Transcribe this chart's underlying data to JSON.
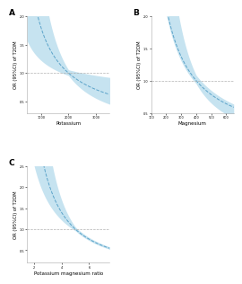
{
  "panel_A": {
    "label": "A",
    "xlabel": "Potassium",
    "ylabel": "OR (95%CI) of T2DM",
    "xrange": [
      500,
      3500
    ],
    "yrange": [
      0.3,
      2.0
    ],
    "ref_y": 1.0,
    "curve_color": "#5ba3c9",
    "fill_color": "#a8d4e8",
    "xticks": [
      1000,
      2000,
      3000
    ],
    "xtick_labels": [
      "1000",
      "2000",
      "3000"
    ],
    "yticks": [
      0.5,
      1.0,
      1.5,
      2.0
    ],
    "ytick_labels": [
      "0.5",
      "1.0",
      "1.5",
      "2.0"
    ]
  },
  "panel_B": {
    "label": "B",
    "xlabel": "Magnesium",
    "ylabel": "OR (95%CI) of T2DM",
    "xrange": [
      100,
      650
    ],
    "yrange": [
      0.5,
      2.0
    ],
    "ref_y": 1.0,
    "curve_color": "#5ba3c9",
    "fill_color": "#a8d4e8",
    "xticks": [
      100,
      200,
      300,
      400,
      500,
      600
    ],
    "xtick_labels": [
      "100",
      "200",
      "300",
      "400",
      "500",
      "600"
    ],
    "yticks": [
      0.5,
      1.0,
      1.5,
      2.0
    ],
    "ytick_labels": [
      "0.5",
      "1.0",
      "1.5",
      "2.0"
    ]
  },
  "panel_C": {
    "label": "C",
    "xlabel": "Potassium magnesium ratio",
    "ylabel": "OR (95%CI) of T2DM",
    "xrange": [
      1.5,
      7.5
    ],
    "yrange": [
      0.2,
      2.5
    ],
    "ref_y": 1.0,
    "curve_color": "#5ba3c9",
    "fill_color": "#a8d4e8",
    "xticks": [
      2,
      4,
      6
    ],
    "xtick_labels": [
      "2",
      "4",
      "6"
    ],
    "yticks": [
      0.5,
      1.0,
      1.5,
      2.0,
      2.5
    ],
    "ytick_labels": [
      "0.5",
      "1.0",
      "1.5",
      "2.0",
      "2.5"
    ]
  },
  "bg_color": "#ffffff",
  "dashed_color": "#aaaaaa",
  "font_size": 4.0,
  "ylabel_font_size": 3.8,
  "title_font_size": 6.5
}
